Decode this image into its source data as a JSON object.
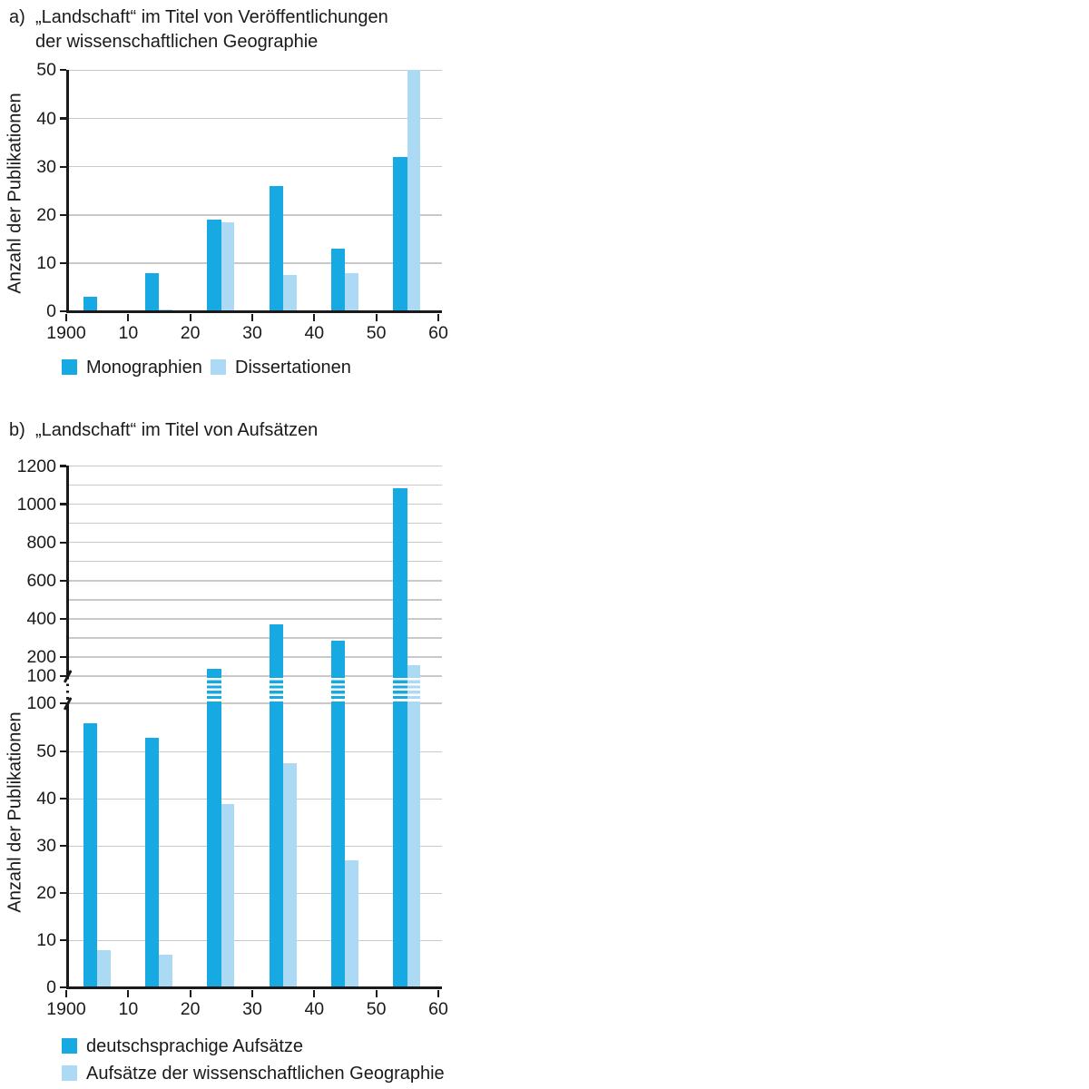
{
  "figure": {
    "background": "#ffffff"
  },
  "colors": {
    "series1": "#16A9E2",
    "series2": "#ACD9F4",
    "gridline": "#C9C9C9",
    "axis": "#1A1A1A",
    "text": "#1A1A1A"
  },
  "chart_data": [
    {
      "id": "a",
      "type": "bar",
      "title_prefix": "a)",
      "title_lines": [
        "„Landschaft“ im Titel von Veröffentlichungen",
        "der wissenschaftlichen Geographie"
      ],
      "ylabel": "Anzahl der Publikationen",
      "categories": [
        1900,
        1910,
        1920,
        1930,
        1940,
        1950
      ],
      "x_axis": {
        "tick_labels": [
          "1900",
          "10",
          "20",
          "30",
          "40",
          "50",
          "60"
        ]
      },
      "y_axis": {
        "ticks": [
          0,
          10,
          20,
          30,
          40,
          50
        ],
        "ylim": [
          0,
          50
        ]
      },
      "grid": true,
      "legend_position": "bottom",
      "series": [
        {
          "key": "monographien",
          "name": "Monographien",
          "color_key": "series1",
          "values": [
            3,
            8,
            19,
            26,
            13,
            32
          ]
        },
        {
          "key": "dissertationen",
          "name": "Dissertationen",
          "color_key": "series2",
          "values": [
            0,
            0.5,
            18.5,
            7.5,
            8,
            50
          ],
          "note": "1950s bar reaches the top of the 0–50 scale (≥ 50)"
        }
      ]
    },
    {
      "id": "b",
      "type": "bar",
      "title_prefix": "b)",
      "title_lines": [
        "„Landschaft“ im Titel von Aufsätzen"
      ],
      "ylabel": "Anzahl der Publikationen",
      "categories": [
        1900,
        1910,
        1920,
        1930,
        1940,
        1950
      ],
      "x_axis": {
        "tick_labels": [
          "1900",
          "10",
          "20",
          "30",
          "40",
          "50",
          "60"
        ]
      },
      "y_axis": {
        "broken": true,
        "lower": {
          "ticks": [
            0,
            10,
            20,
            30,
            40,
            50,
            100
          ],
          "ylim": [
            0,
            100
          ]
        },
        "upper": {
          "labeled_ticks": [
            100,
            200,
            400,
            600,
            800,
            1000,
            1200
          ],
          "gridline_step": 100,
          "ylim": [
            100,
            1200
          ]
        }
      },
      "grid": true,
      "legend_position": "bottom",
      "series": [
        {
          "key": "deutschsprachige-aufsaetze",
          "name": "deutschsprachige Aufsätze",
          "color_key": "series1",
          "values": [
            56,
            53,
            140,
            370,
            285,
            1085
          ]
        },
        {
          "key": "aufsaetze-wissenschaftliche-geographie",
          "name": "Aufsätze der wissenschaftlichen Geographie",
          "color_key": "series2",
          "values": [
            8,
            7,
            39,
            47.5,
            27,
            155
          ]
        }
      ]
    }
  ]
}
